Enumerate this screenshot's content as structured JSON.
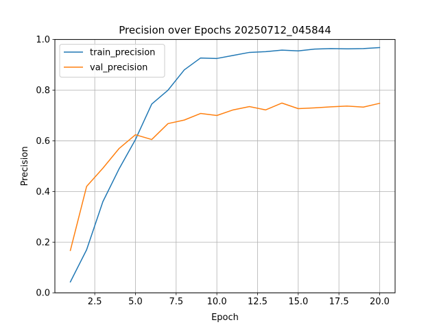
{
  "chart_data": {
    "type": "line",
    "title": "Precision over Epochs 20250712_045844",
    "xlabel": "Epoch",
    "ylabel": "Precision",
    "xlim": [
      0.05,
      20.95
    ],
    "ylim": [
      0.0,
      1.0
    ],
    "x_ticks": [
      2.5,
      5.0,
      7.5,
      10.0,
      12.5,
      15.0,
      17.5,
      20.0
    ],
    "x_tick_labels": [
      "2.5",
      "5.0",
      "7.5",
      "10.0",
      "12.5",
      "15.0",
      "17.5",
      "20.0"
    ],
    "y_ticks": [
      0.0,
      0.2,
      0.4,
      0.6,
      0.8,
      1.0
    ],
    "y_tick_labels": [
      "0.0",
      "0.2",
      "0.4",
      "0.6",
      "0.8",
      "1.0"
    ],
    "grid": true,
    "legend_position": "top-left",
    "x": [
      1,
      2,
      3,
      4,
      5,
      6,
      7,
      8,
      9,
      10,
      11,
      12,
      13,
      14,
      15,
      16,
      17,
      18,
      19,
      20
    ],
    "series": [
      {
        "name": "train_precision",
        "color": "#1f77b4",
        "values": [
          0.043,
          0.17,
          0.36,
          0.49,
          0.605,
          0.745,
          0.8,
          0.88,
          0.927,
          0.925,
          0.937,
          0.949,
          0.952,
          0.958,
          0.955,
          0.962,
          0.964,
          0.963,
          0.964,
          0.968
        ]
      },
      {
        "name": "val_precision",
        "color": "#ff7f0e",
        "values": [
          0.167,
          0.42,
          0.492,
          0.57,
          0.624,
          0.605,
          0.668,
          0.682,
          0.708,
          0.7,
          0.722,
          0.735,
          0.722,
          0.749,
          0.727,
          0.73,
          0.734,
          0.737,
          0.733,
          0.748
        ]
      }
    ]
  }
}
